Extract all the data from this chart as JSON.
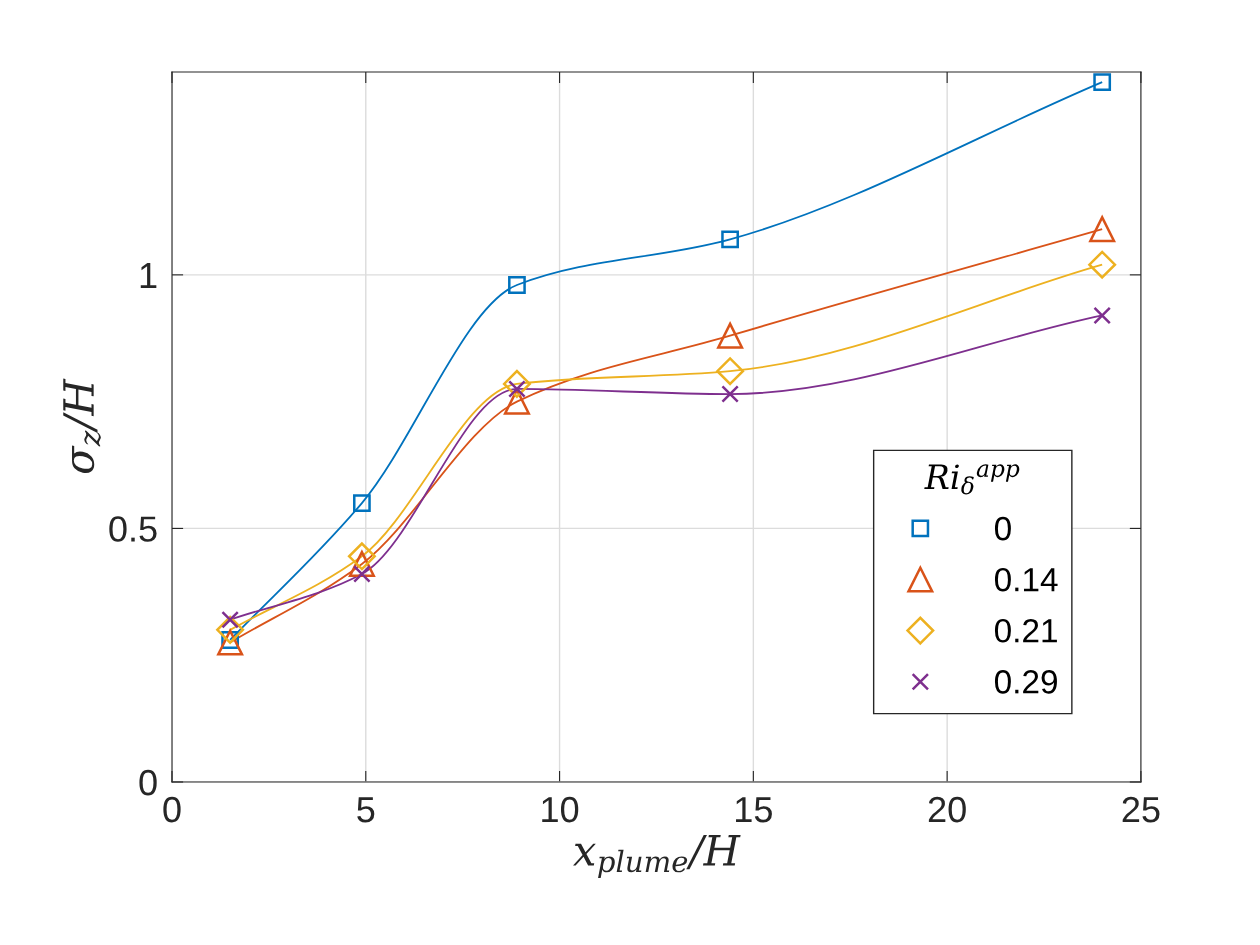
{
  "chart_data": {
    "type": "line",
    "xlabel": "x$_{plume}$/H",
    "ylabel": "σ$_{z}$/H",
    "legend_title": "Ri$_{δ}$$^{app}$",
    "x": [
      1.5,
      4.9,
      8.9,
      14.4,
      24
    ],
    "series": [
      {
        "name": "0",
        "color": "#0072bd",
        "marker": "square",
        "values": [
          0.28,
          0.55,
          0.98,
          1.07,
          1.38
        ]
      },
      {
        "name": "0.14",
        "color": "#d95319",
        "marker": "triangle",
        "values": [
          0.275,
          0.43,
          0.75,
          0.88,
          1.09
        ]
      },
      {
        "name": "0.21",
        "color": "#edb120",
        "marker": "diamond",
        "values": [
          0.3,
          0.445,
          0.785,
          0.81,
          1.02
        ]
      },
      {
        "name": "0.29",
        "color": "#7e2f8e",
        "marker": "cross",
        "values": [
          0.32,
          0.41,
          0.775,
          0.765,
          0.92
        ]
      }
    ],
    "xlim": [
      0,
      25
    ],
    "ylim": [
      0,
      1.4
    ],
    "xticks": [
      0,
      5,
      10,
      15,
      20,
      25
    ],
    "yticks": [
      0,
      0.5,
      1
    ],
    "grid": true,
    "legend": "bottom right",
    "line_style": "solid"
  }
}
